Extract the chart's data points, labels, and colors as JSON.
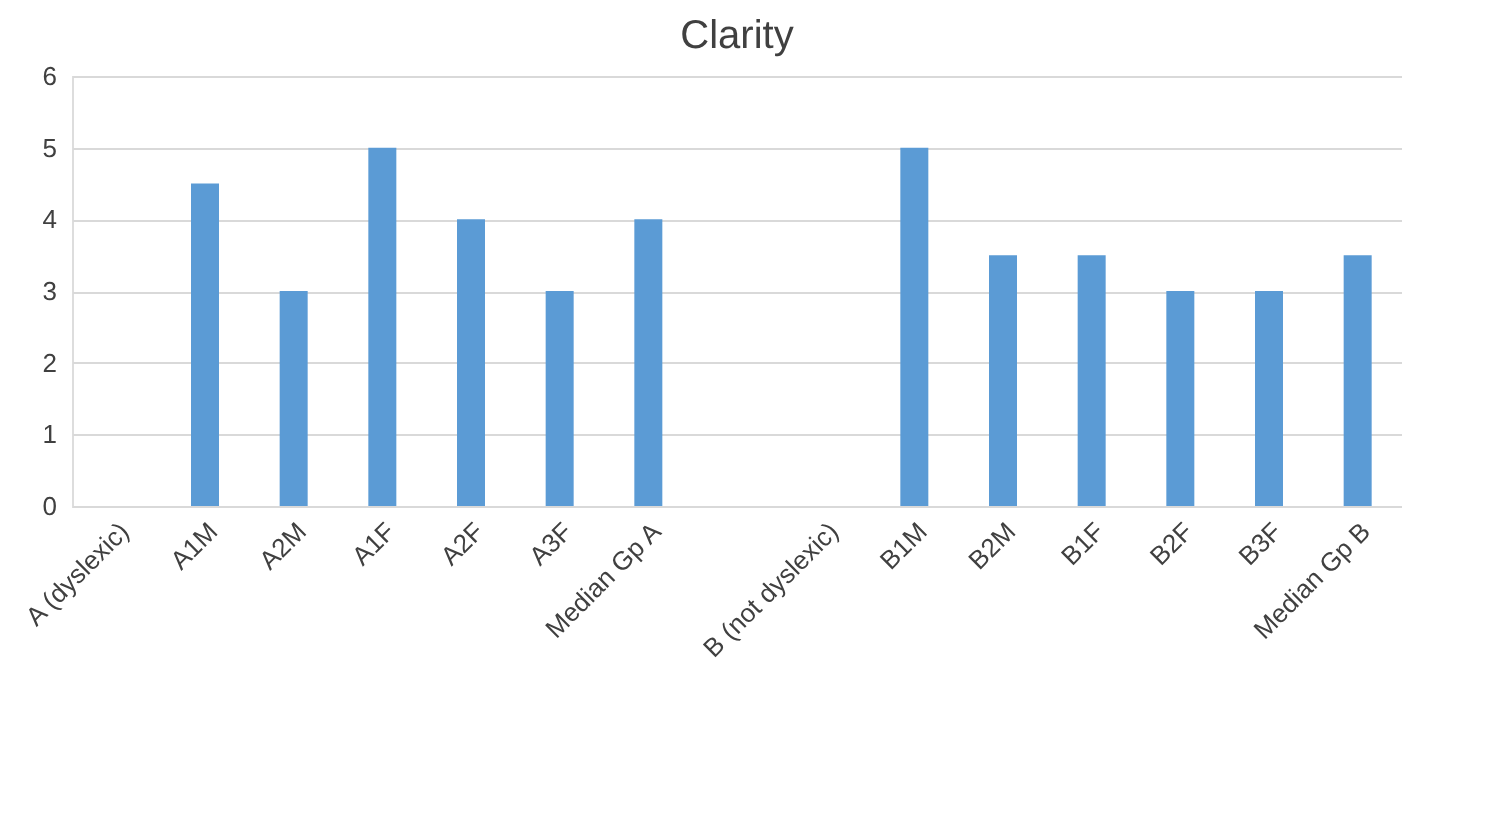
{
  "chart_data": {
    "type": "bar",
    "title": "Clarity",
    "categories": [
      "A (dyslexic)",
      "A1M",
      "A2M",
      "A1F",
      "A2F",
      "A3F",
      "Median Gp A",
      null,
      "B (not dyslexic)",
      "B1M",
      "B2M",
      "B1F",
      "B2F",
      "B3F",
      "Median Gp B"
    ],
    "values": [
      null,
      4.5,
      3,
      5,
      4,
      3,
      4,
      null,
      null,
      5,
      3.5,
      3.5,
      3,
      3,
      3.5
    ],
    "color": "#5b9bd5",
    "ylim": [
      0,
      6
    ],
    "yticks": [
      0,
      1,
      2,
      3,
      4,
      5,
      6
    ],
    "grid": "y"
  }
}
